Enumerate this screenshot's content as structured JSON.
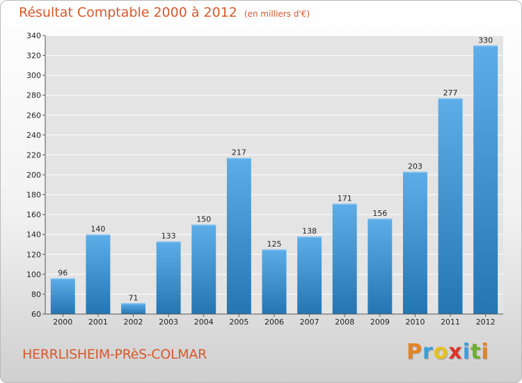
{
  "header": {
    "title": "Résultat Comptable 2000 à 2012",
    "subtitle": "(en milliers d'€)"
  },
  "location": "HERRLISHEIM-PRèS-COLMAR",
  "brand": {
    "letters": [
      "P",
      "r",
      "o",
      "x",
      "i",
      "t",
      "i"
    ],
    "colors": [
      "#e8821e",
      "#3aa0da",
      "#e8c11e",
      "#d8362a",
      "#3aa0da",
      "#6cb02f",
      "#e8821e"
    ]
  },
  "colors": {
    "bar_top": "#5dade8",
    "bar_bottom": "#2476b2",
    "title": "#d8582a"
  },
  "chart_data": {
    "type": "bar",
    "title": "Résultat Comptable 2000 à 2012",
    "subtitle": "(en milliers d'€)",
    "categories": [
      "2000",
      "2001",
      "2002",
      "2003",
      "2004",
      "2005",
      "2006",
      "2007",
      "2008",
      "2009",
      "2010",
      "2011",
      "2012"
    ],
    "values": [
      96,
      140,
      71,
      133,
      150,
      217,
      125,
      138,
      171,
      156,
      203,
      277,
      330
    ],
    "ylim": [
      60,
      340
    ],
    "yticks": [
      60,
      80,
      100,
      120,
      140,
      160,
      180,
      200,
      220,
      240,
      260,
      280,
      300,
      320,
      340
    ],
    "grid": true,
    "legend": "none"
  }
}
